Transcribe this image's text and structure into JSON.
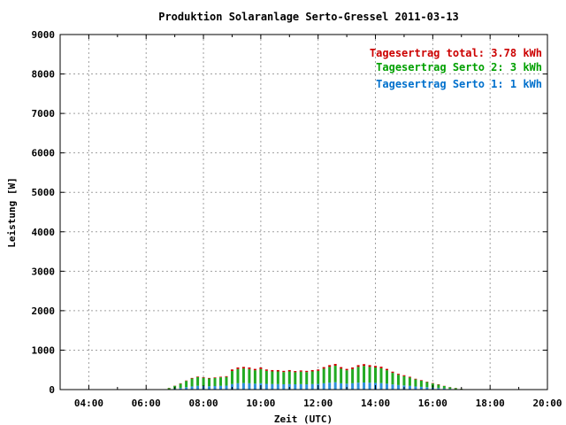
{
  "chart_data": {
    "type": "bar",
    "title": "Produktion Solaranlage Serto-Gressel 2011-03-13",
    "xlabel": "Zeit (UTC)",
    "ylabel": "Leistung [W]",
    "xlim": [
      3,
      20
    ],
    "ylim": [
      0,
      9000
    ],
    "x_ticks": [
      "04:00",
      "06:00",
      "08:00",
      "10:00",
      "12:00",
      "14:00",
      "16:00",
      "18:00",
      "20:00"
    ],
    "y_ticks": [
      "0",
      "1000",
      "2000",
      "3000",
      "4000",
      "5000",
      "6000",
      "7000",
      "8000",
      "9000"
    ],
    "grid": true,
    "legend_position": "top-right",
    "legend": [
      {
        "label": "Tagesertrag total:",
        "value": "3.78 kWh",
        "color": "#cc0000"
      },
      {
        "label": "Tagesertrag Serto 2:",
        "value": "3 kWh",
        "color": "#00a000"
      },
      {
        "label": "Tagesertrag Serto 1:",
        "value": "1 kWh",
        "color": "#0070cc"
      }
    ],
    "stacking": "stacked",
    "colors": {
      "serto1": "#2f8fd8",
      "serto2": "#22aa22",
      "total": "#cc0000"
    },
    "x": [
      6.8,
      7.0,
      7.2,
      7.4,
      7.6,
      7.8,
      8.0,
      8.2,
      8.4,
      8.6,
      8.8,
      9.0,
      9.2,
      9.4,
      9.6,
      9.8,
      10.0,
      10.2,
      10.4,
      10.6,
      10.8,
      11.0,
      11.2,
      11.4,
      11.6,
      11.8,
      12.0,
      12.2,
      12.4,
      12.6,
      12.8,
      13.0,
      13.2,
      13.4,
      13.6,
      13.8,
      14.0,
      14.2,
      14.4,
      14.6,
      14.8,
      15.0,
      15.2,
      15.4,
      15.6,
      15.8,
      16.0,
      16.2,
      16.4,
      16.6,
      16.8,
      17.0
    ],
    "series": [
      {
        "id": "serto1",
        "values": [
          10,
          25,
          40,
          60,
          80,
          95,
          90,
          85,
          90,
          95,
          100,
          140,
          160,
          165,
          160,
          150,
          160,
          145,
          140,
          140,
          135,
          140,
          135,
          140,
          135,
          140,
          145,
          160,
          175,
          185,
          160,
          150,
          160,
          175,
          180,
          175,
          170,
          165,
          150,
          130,
          115,
          105,
          95,
          80,
          70,
          60,
          50,
          40,
          30,
          20,
          12,
          6
        ]
      },
      {
        "id": "serto2",
        "values": [
          30,
          70,
          110,
          160,
          200,
          220,
          210,
          195,
          205,
          215,
          220,
          330,
          360,
          370,
          360,
          340,
          360,
          330,
          320,
          320,
          310,
          320,
          305,
          315,
          310,
          320,
          330,
          370,
          400,
          420,
          370,
          340,
          360,
          400,
          420,
          400,
          390,
          375,
          340,
          295,
          260,
          235,
          210,
          180,
          155,
          130,
          105,
          85,
          60,
          40,
          25,
          12
        ]
      },
      {
        "id": "total",
        "values": [
          5,
          5,
          10,
          10,
          15,
          15,
          15,
          15,
          15,
          15,
          20,
          40,
          40,
          40,
          40,
          35,
          40,
          35,
          35,
          35,
          30,
          35,
          30,
          30,
          30,
          35,
          35,
          40,
          45,
          45,
          40,
          35,
          40,
          45,
          45,
          45,
          40,
          40,
          35,
          30,
          25,
          25,
          20,
          15,
          15,
          10,
          10,
          10,
          5,
          5,
          5,
          2
        ]
      }
    ]
  }
}
